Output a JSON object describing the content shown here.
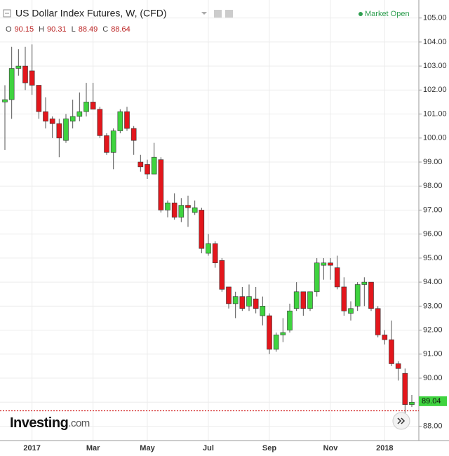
{
  "chart_data": {
    "type": "candlestick",
    "title": "US Dollar Index Futures, W, (CFD)",
    "status": "Market Open",
    "brand": "Investing",
    "brand_suffix": ".com",
    "ohlc_legend": [
      {
        "label": "O",
        "value": 90.15
      },
      {
        "label": "H",
        "value": 90.31
      },
      {
        "label": "L",
        "value": 88.49
      },
      {
        "label": "C",
        "value": 88.64
      }
    ],
    "categories": [
      null,
      null,
      null,
      null,
      "2017",
      null,
      null,
      null,
      null,
      null,
      null,
      null,
      null,
      "Mar",
      null,
      null,
      null,
      null,
      null,
      null,
      null,
      "May",
      null,
      null,
      null,
      null,
      null,
      null,
      null,
      null,
      "Jul",
      null,
      null,
      null,
      null,
      null,
      null,
      null,
      null,
      "Sep",
      null,
      null,
      null,
      null,
      null,
      null,
      null,
      null,
      "Nov",
      null,
      null,
      null,
      null,
      null,
      null,
      null,
      "2018",
      null,
      null,
      null,
      null
    ],
    "open": [
      101.5,
      101.6,
      102.9,
      103.0,
      102.8,
      102.2,
      101.1,
      100.8,
      100.6,
      99.9,
      100.7,
      100.9,
      101.1,
      101.5,
      101.2,
      100.1,
      99.4,
      100.3,
      101.1,
      100.4,
      99.0,
      98.9,
      98.5,
      99.1,
      97.0,
      97.3,
      96.7,
      97.2,
      96.9,
      97.0,
      95.2,
      95.6,
      94.9,
      93.8,
      93.1,
      93.4,
      93.0,
      93.3,
      92.6,
      92.6,
      91.2,
      91.8,
      92.0,
      92.9,
      93.6,
      92.9,
      93.6,
      94.7,
      94.8,
      94.6,
      93.8,
      92.7,
      93.0,
      93.9,
      94.0,
      92.9,
      91.8,
      91.6,
      90.6,
      90.2,
      88.9
    ],
    "high": [
      102.2,
      103.8,
      103.7,
      103.8,
      103.9,
      102.2,
      101.7,
      100.9,
      100.8,
      101.0,
      101.6,
      101.9,
      102.3,
      102.3,
      101.3,
      100.2,
      100.4,
      101.2,
      101.3,
      100.5,
      99.3,
      99.1,
      99.8,
      99.2,
      97.4,
      97.7,
      97.5,
      97.6,
      97.4,
      97.1,
      96.0,
      95.7,
      95.0,
      93.8,
      93.6,
      93.8,
      93.9,
      93.8,
      93.4,
      92.7,
      91.9,
      92.5,
      93.1,
      94.0,
      93.6,
      93.6,
      95.0,
      95.0,
      95.0,
      95.1,
      94.2,
      93.2,
      94.0,
      94.2,
      94.0,
      93.0,
      92.0,
      92.4,
      90.7,
      90.4,
      89.3
    ],
    "low": [
      99.5,
      100.8,
      102.6,
      102.0,
      101.8,
      100.8,
      100.4,
      100.0,
      99.2,
      99.8,
      100.4,
      100.7,
      100.9,
      101.2,
      100.0,
      99.3,
      98.7,
      100.2,
      100.3,
      99.3,
      98.6,
      98.3,
      98.5,
      96.9,
      96.7,
      96.6,
      96.5,
      96.3,
      96.8,
      95.2,
      95.1,
      94.6,
      93.6,
      92.9,
      92.5,
      92.8,
      92.8,
      92.7,
      92.2,
      91.0,
      91.1,
      91.5,
      91.9,
      92.8,
      92.6,
      92.8,
      93.4,
      94.1,
      94.1,
      93.7,
      92.6,
      92.4,
      92.8,
      93.0,
      92.8,
      91.7,
      91.4,
      90.5,
      89.9,
      88.4,
      88.8
    ],
    "close": [
      101.6,
      102.9,
      103.0,
      102.3,
      102.2,
      101.1,
      100.7,
      100.6,
      100.0,
      100.8,
      100.9,
      101.1,
      101.5,
      101.2,
      100.1,
      99.4,
      100.3,
      101.1,
      100.4,
      99.9,
      98.8,
      98.5,
      99.2,
      97.0,
      97.3,
      96.7,
      97.2,
      97.1,
      97.1,
      95.4,
      95.6,
      94.8,
      93.7,
      93.1,
      93.4,
      92.9,
      93.4,
      92.9,
      93.0,
      91.2,
      91.8,
      91.9,
      92.8,
      93.6,
      92.9,
      93.6,
      94.8,
      94.8,
      94.7,
      93.8,
      92.8,
      92.9,
      93.9,
      94.0,
      92.9,
      91.8,
      91.6,
      90.6,
      90.4,
      88.9,
      89.0
    ],
    "up_color": "#3fd33f",
    "down_color": "#e3161c",
    "last_price": {
      "value": 89.04,
      "label": "89.04"
    },
    "dotted_line": 88.64,
    "ylim": [
      87.4,
      105.75
    ],
    "yticks": [
      {
        "value": 88,
        "label": "88.00"
      },
      {
        "value": 89,
        "label": "89.00"
      },
      {
        "value": 90,
        "label": "90.00"
      },
      {
        "value": 91,
        "label": "91.00"
      },
      {
        "value": 92,
        "label": "92.00"
      },
      {
        "value": 93,
        "label": "93.00"
      },
      {
        "value": 94,
        "label": "94.00"
      },
      {
        "value": 95,
        "label": "95.00"
      },
      {
        "value": 96,
        "label": "96.00"
      },
      {
        "value": 97,
        "label": "97.00"
      },
      {
        "value": 98,
        "label": "98.00"
      },
      {
        "value": 99,
        "label": "99.00"
      },
      {
        "value": 100,
        "label": "100.00"
      },
      {
        "value": 101,
        "label": "101.00"
      },
      {
        "value": 102,
        "label": "102.00"
      },
      {
        "value": 103,
        "label": "103.00"
      },
      {
        "value": 104,
        "label": "104.00"
      },
      {
        "value": 105,
        "label": "105.00"
      }
    ],
    "grid": true
  }
}
